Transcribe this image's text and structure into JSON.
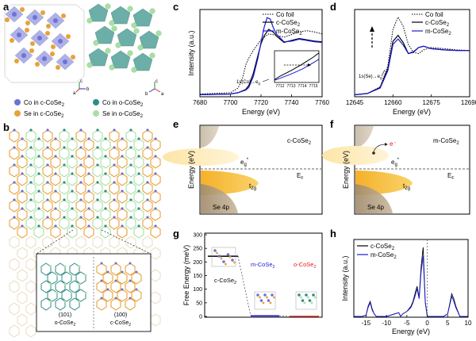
{
  "panel_letters": {
    "a": "a",
    "b": "b",
    "c": "c",
    "d": "d",
    "e": "e",
    "f": "f",
    "g": "g",
    "h": "h"
  },
  "panel_a": {
    "legend": [
      {
        "label": "Co in c-CoSe",
        "sub": "2",
        "color": "#6d72d4"
      },
      {
        "label": "Se in c-CoSe",
        "sub": "2",
        "color": "#e8a23a"
      },
      {
        "label": "Co in o-CoSe",
        "sub": "2",
        "color": "#2f8c84"
      },
      {
        "label": "Se in o-CoSe",
        "sub": "2",
        "color": "#a8e0a4"
      }
    ],
    "axes_left": {
      "c": "c",
      "b": "b",
      "a": "a"
    },
    "axes_right": {
      "c": "c",
      "b": "b",
      "a": "a"
    }
  },
  "panel_b": {
    "inset_left_index": "(101)",
    "inset_left_phase": "o-CoSe",
    "inset_left_sub": "2",
    "inset_right_index": "(100)",
    "inset_right_phase": "c-CoSe",
    "inset_right_sub": "2"
  },
  "panel_c": {
    "ylabel": "Intensity (a.u.)",
    "xlabel": "Energy (eV)",
    "xticks": [
      "7680",
      "7700",
      "7720",
      "7740",
      "7760"
    ],
    "legend": [
      {
        "label": "Co foil",
        "style": "dotted",
        "color": "#000000"
      },
      {
        "label": "c-CoSe",
        "sub": "2",
        "style": "solid",
        "color": "#000000"
      },
      {
        "label": "m-CoSe",
        "sub": "2",
        "style": "solid",
        "color": "#1a1ad6"
      }
    ],
    "annotation": "1s(Co)→e",
    "annotation_sub": "g",
    "inset_xticks": [
      "7712",
      "7713",
      "7714",
      "7715"
    ]
  },
  "panel_d": {
    "xlabel": "Energy (eV)",
    "xticks": [
      "12645",
      "12660",
      "12675",
      "12690"
    ],
    "legend": [
      {
        "label": "Co foil",
        "style": "dotted",
        "color": "#000000"
      },
      {
        "label": "c-CoSe",
        "sub": "2",
        "style": "solid",
        "color": "#000000"
      },
      {
        "label": "m-CoSe",
        "sub": "2",
        "style": "solid",
        "color": "#1a1ad6"
      }
    ],
    "annotation": "1s(Se)→e",
    "annotation_sub": "g"
  },
  "panel_e": {
    "ylabel": "Energy (eV)",
    "title": "c-CoSe",
    "title_sub": "2",
    "eg": "e",
    "eg_sub": "g",
    "t2g": "t",
    "t2g_sub": "2g",
    "ef": "E",
    "ef_sub": "F",
    "se": "Se 4p"
  },
  "panel_f": {
    "ylabel": "Energy (eV)",
    "title": "m-CoSe",
    "title_sub": "2",
    "electron": "e⁻",
    "eg": "e",
    "eg_sub": "g",
    "t2g": "t",
    "t2g_sub": "2g",
    "ef": "E",
    "ef_sub": "F",
    "se": "Se 4p"
  },
  "panel_g": {
    "ylabel": "Free Energy (meV)",
    "yticks": [
      "0",
      "50",
      "100",
      "150",
      "200",
      "250",
      "300"
    ],
    "phases": [
      {
        "label": "c-CoSe",
        "sub": "2",
        "color": "#000000",
        "energy": 221
      },
      {
        "label": "m-CoSe",
        "sub": "2",
        "color": "#1a1ad6",
        "energy": 2
      },
      {
        "label": "o-CoSe",
        "sub": "2",
        "color": "#e01b1b",
        "energy": 0
      }
    ]
  },
  "panel_h": {
    "ylabel": "Intensity (a.u.)",
    "xlabel": "Energy (eV)",
    "xticks": [
      "-15",
      "-10",
      "-5",
      "0",
      "5",
      "10"
    ],
    "legend": [
      {
        "label": "c-CoSe",
        "sub": "2",
        "color": "#000000"
      },
      {
        "label": "m-CoSe",
        "sub": "2",
        "color": "#1a1ad6"
      }
    ]
  },
  "chart_data": [
    {
      "type": "line",
      "xlabel": "Energy (eV)",
      "ylabel": "Intensity (a.u.)",
      "xlim": [
        7680,
        7760
      ],
      "series": [
        {
          "name": "Co foil",
          "x": [
            7680,
            7700,
            7705,
            7708,
            7710,
            7712,
            7715,
            7720,
            7725,
            7730,
            7735,
            7740,
            7745,
            7750,
            7755,
            7760
          ],
          "y": [
            0.03,
            0.05,
            0.12,
            0.28,
            0.48,
            0.58,
            0.7,
            0.86,
            0.95,
            0.93,
            0.9,
            0.94,
            0.98,
            1.0,
            0.98,
            0.95
          ]
        },
        {
          "name": "c-CoSe2",
          "x": [
            7680,
            7700,
            7705,
            7710,
            7712,
            7715,
            7718,
            7720,
            7722,
            7725,
            7728,
            7730,
            7735,
            7740,
            7745,
            7750,
            7755,
            7760
          ],
          "y": [
            0.02,
            0.03,
            0.05,
            0.1,
            0.16,
            0.35,
            0.62,
            0.8,
            0.92,
            1.02,
            0.98,
            0.92,
            0.82,
            0.85,
            0.88,
            0.86,
            0.84,
            0.83
          ]
        },
        {
          "name": "m-CoSe2",
          "x": [
            7680,
            7700,
            7705,
            7710,
            7712,
            7715,
            7718,
            7720,
            7722,
            7724,
            7726,
            7728,
            7730,
            7735,
            7740,
            7745,
            7750,
            7755,
            7760
          ],
          "y": [
            0.02,
            0.03,
            0.05,
            0.09,
            0.13,
            0.3,
            0.58,
            0.82,
            1.05,
            1.2,
            1.18,
            1.05,
            0.95,
            0.83,
            0.84,
            0.87,
            0.85,
            0.83,
            0.82
          ]
        }
      ]
    },
    {
      "type": "line",
      "xlabel": "Energy (eV)",
      "xlim": [
        12645,
        12690
      ],
      "series": [
        {
          "name": "Co foil",
          "x": [
            12645,
            12650,
            12655,
            12658,
            12660,
            12662,
            12664,
            12666,
            12668,
            12670,
            12672,
            12675,
            12680,
            12685,
            12690
          ],
          "y": [
            0.02,
            0.04,
            0.15,
            0.5,
            1.1,
            1.3,
            1.15,
            0.85,
            0.72,
            0.7,
            0.76,
            0.8,
            0.78,
            0.76,
            0.75
          ]
        },
        {
          "name": "c-CoSe2",
          "x": [
            12645,
            12650,
            12655,
            12658,
            12660,
            12662,
            12664,
            12666,
            12668,
            12670,
            12672,
            12675,
            12680,
            12685,
            12690
          ],
          "y": [
            0.02,
            0.04,
            0.14,
            0.45,
            0.9,
            1.0,
            0.88,
            0.7,
            0.72,
            0.8,
            0.82,
            0.78,
            0.76,
            0.75,
            0.75
          ]
        },
        {
          "name": "m-CoSe2",
          "x": [
            12645,
            12650,
            12655,
            12658,
            12660,
            12662,
            12664,
            12666,
            12668,
            12670,
            12672,
            12675,
            12680,
            12685,
            12690
          ],
          "y": [
            0.02,
            0.04,
            0.13,
            0.42,
            0.85,
            0.94,
            0.84,
            0.7,
            0.73,
            0.8,
            0.82,
            0.78,
            0.76,
            0.75,
            0.75
          ]
        }
      ]
    },
    {
      "type": "bar",
      "ylabel": "Free Energy (meV)",
      "ylim": [
        0,
        300
      ],
      "categories": [
        "c-CoSe2",
        "m-CoSe2",
        "o-CoSe2"
      ],
      "values": [
        221,
        2,
        0
      ]
    },
    {
      "type": "line",
      "xlabel": "Energy (eV)",
      "ylabel": "Intensity (a.u.)",
      "xlim": [
        -18,
        10
      ],
      "series": [
        {
          "name": "c-CoSe2",
          "x": [
            -18,
            -16,
            -15,
            -14.5,
            -14,
            -13.5,
            -13,
            -12.5,
            -12,
            -11,
            -10,
            -9,
            -8,
            -7,
            -6.5,
            -6,
            -5,
            -4,
            -3.5,
            -3,
            -2.5,
            -2,
            -1.5,
            -1,
            -0.5,
            0,
            1,
            2,
            3,
            4,
            5,
            5.5,
            6,
            6.5,
            7,
            8,
            9,
            10
          ],
          "y": [
            0,
            0,
            1,
            8,
            12,
            6,
            2,
            0,
            0,
            0,
            0,
            1,
            2,
            3,
            0,
            2,
            4,
            8,
            12,
            18,
            24,
            15,
            40,
            55,
            12,
            0,
            0,
            0,
            0,
            0,
            2,
            10,
            18,
            14,
            8,
            0,
            0,
            0
          ]
        },
        {
          "name": "m-CoSe2",
          "x": [
            -18,
            -16,
            -15,
            -14.5,
            -14,
            -13.5,
            -13,
            -12.5,
            -12,
            -11,
            -10,
            -9,
            -8,
            -7,
            -6.5,
            -6,
            -5,
            -4,
            -3.5,
            -3,
            -2.5,
            -2,
            -1.5,
            -1,
            -0.5,
            0,
            1,
            2,
            3,
            4,
            5,
            5.5,
            6,
            6.5,
            7,
            8,
            9,
            10
          ],
          "y": [
            0,
            0,
            1,
            7,
            11,
            5,
            2,
            0,
            0,
            0,
            0,
            1,
            2,
            3,
            0,
            2,
            4,
            7,
            11,
            16,
            22,
            14,
            36,
            48,
            11,
            0,
            0,
            0,
            0,
            0,
            2,
            9,
            16,
            12,
            7,
            0,
            0,
            0
          ]
        }
      ]
    }
  ]
}
